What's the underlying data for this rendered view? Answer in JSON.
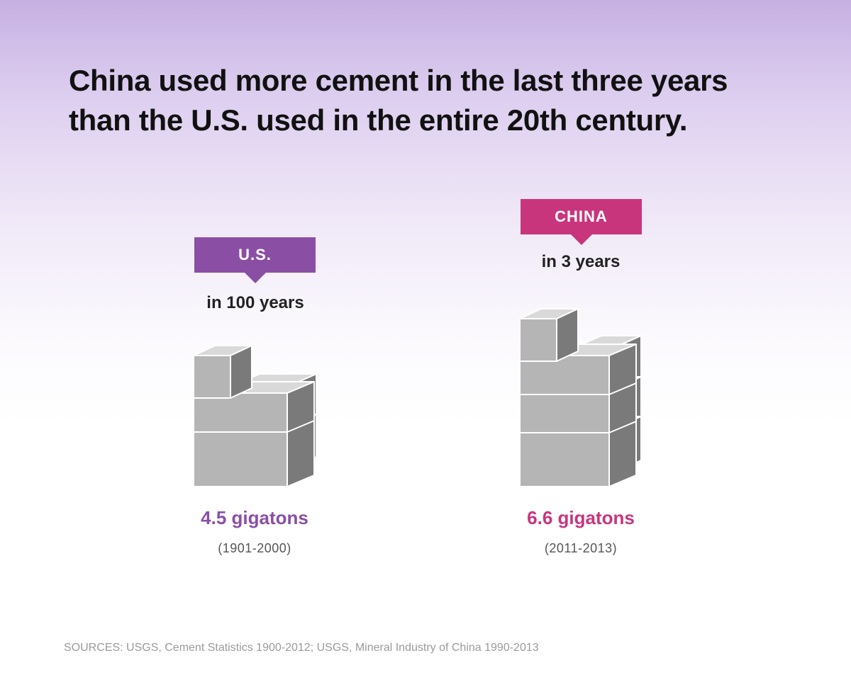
{
  "chart_data": {
    "type": "bar",
    "title": "China used more cement in the last three years than the U.S. used in the entire 20th century.",
    "title_lines": [
      "China used more cement in the last three years",
      "than the U.S. used in the entire 20th century."
    ],
    "unit": "gigatons",
    "series": [
      {
        "key": "us",
        "name": "U.S.",
        "period_label": "in 100 years",
        "value": 4.5,
        "value_label": "4.5 gigatons",
        "range_label": "(1901-2000)",
        "color": "#8a4fa5"
      },
      {
        "key": "china",
        "name": "CHINA",
        "period_label": "in 3 years",
        "value": 6.6,
        "value_label": "6.6 gigatons",
        "range_label": "(2011-2013)",
        "color": "#c8357d"
      }
    ],
    "sources": "SOURCES: USGS, Cement Statistics 1900-2012; USGS, Mineral Industry of China 1990-2013"
  },
  "colors": {
    "block_top": "#d9d9d9",
    "block_front": "#b5b5b5",
    "block_side": "#7a7a7a"
  }
}
